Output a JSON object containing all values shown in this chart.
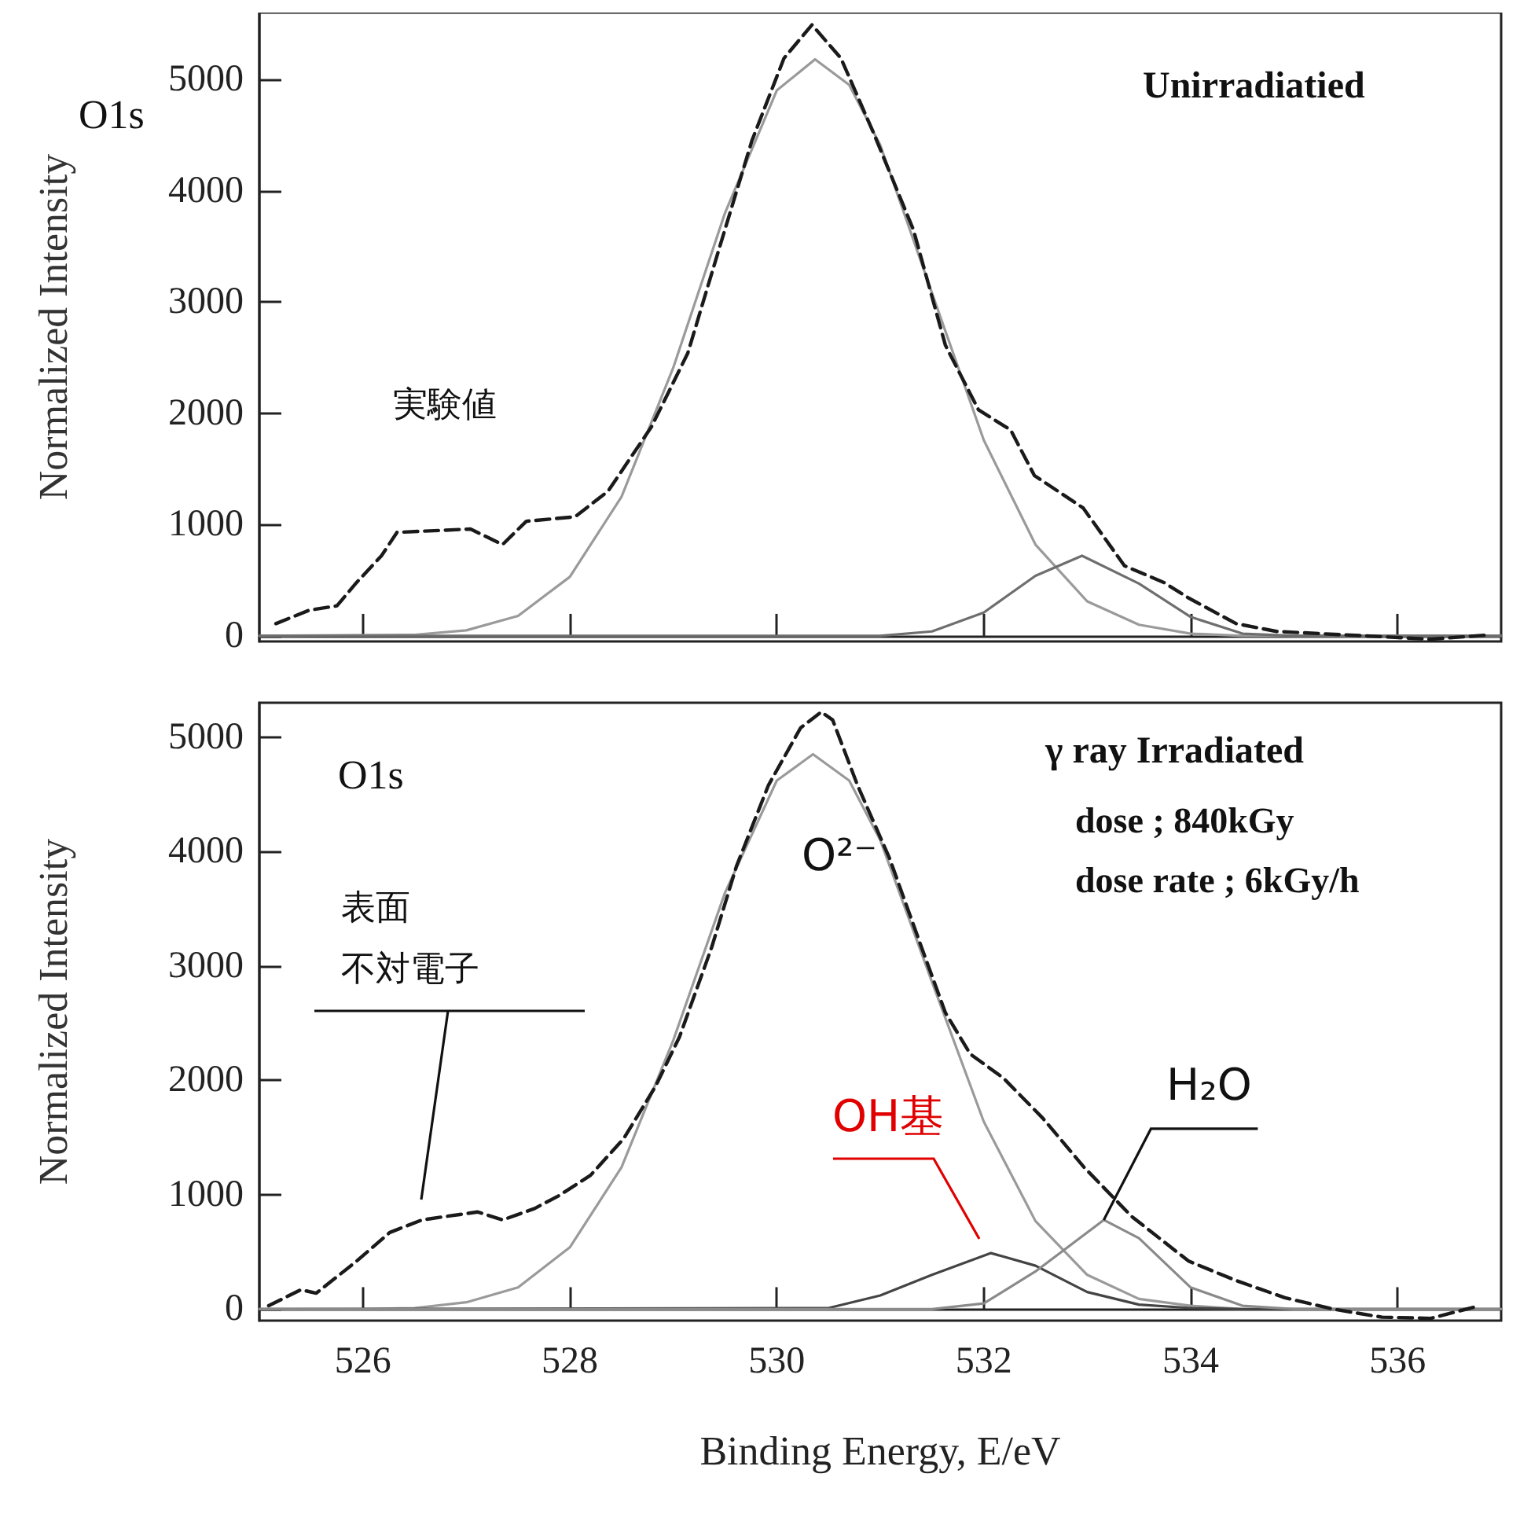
{
  "chart_data": [
    {
      "type": "line",
      "ylabel": "Normalized Intensity",
      "xlim": [
        525,
        537
      ],
      "xticks": [
        526,
        528,
        530,
        532,
        534,
        536
      ],
      "ylim": [
        -50,
        5600
      ],
      "yticks": [
        0,
        1000,
        2000,
        3000,
        4000,
        5000
      ],
      "tick_labels": "y",
      "marker": "none",
      "annotations": [
        "O1s",
        "Unirradiatied",
        "実験値"
      ],
      "series": [
        {
          "color": "#1a1a1a",
          "line_style": "dashed",
          "x": [
            525.16,
            525.48,
            525.75,
            525.94,
            526.18,
            526.33,
            527.04,
            527.35,
            527.58,
            528.05,
            528.37,
            528.79,
            529.14,
            529.45,
            529.76,
            530.07,
            530.34,
            530.62,
            530.93,
            531.32,
            531.63,
            531.95,
            532.26,
            532.49,
            532.96,
            533.36,
            533.74,
            533.98,
            534.44,
            534.83,
            535.69,
            536.32,
            536.9
          ],
          "values": [
            110,
            230,
            270,
            480,
            720,
            930,
            960,
            820,
            1030,
            1070,
            1300,
            1880,
            2540,
            3500,
            4450,
            5190,
            5490,
            5190,
            4530,
            3650,
            2610,
            2030,
            1850,
            1440,
            1150,
            630,
            480,
            340,
            110,
            40,
            0,
            -30,
            10
          ]
        },
        {
          "color": "#9a9a9a",
          "line_style": "solid",
          "x": [
            525,
            526.5,
            527,
            527.5,
            528,
            528.5,
            529,
            529.5,
            530,
            530.37,
            530.7,
            531,
            531.5,
            532,
            532.5,
            533,
            533.5,
            534,
            534.5,
            537
          ],
          "values": [
            0,
            10,
            50,
            180,
            530,
            1250,
            2410,
            3800,
            4900,
            5180,
            4950,
            4410,
            3080,
            1760,
            820,
            310,
            100,
            20,
            0,
            0
          ]
        },
        {
          "color": "#6e6e6e",
          "line_style": "solid",
          "x": [
            525,
            531,
            531.5,
            532,
            532.5,
            532.95,
            533.5,
            534,
            534.5,
            535,
            537
          ],
          "values": [
            0,
            0,
            40,
            210,
            540,
            720,
            470,
            170,
            20,
            0,
            0
          ]
        }
      ]
    },
    {
      "type": "line",
      "ylabel": "Normalized Intensity",
      "xlabel": "Binding Energy, E/eV",
      "xlim": [
        525,
        537
      ],
      "xticks": [
        526,
        528,
        530,
        532,
        534,
        536
      ],
      "ylim": [
        -100,
        5300
      ],
      "yticks": [
        0,
        1000,
        2000,
        3000,
        4000,
        5000
      ],
      "marker": "none",
      "annotations": [
        "O1s",
        "γ ray Irradiated",
        "dose ; 840kGy",
        "dose rate ; 6kGy/h",
        "O²⁻",
        "表面",
        "不対電子",
        "OH基",
        {
          "text": "H₂O",
          "x": 533.16,
          "y": 780
        }
      ],
      "series": [
        {
          "color": "#1a1a1a",
          "line_style": "dashed",
          "x": [
            525.09,
            525.4,
            525.55,
            525.94,
            526.26,
            526.57,
            526.8,
            527.11,
            527.35,
            527.66,
            527.89,
            528.2,
            528.52,
            528.83,
            529.06,
            529.37,
            529.61,
            529.92,
            530.23,
            530.43,
            530.54,
            530.78,
            531.09,
            531.4,
            531.63,
            531.87,
            532.19,
            532.57,
            532.97,
            533.43,
            533.98,
            534.44,
            534.91,
            535.38,
            535.85,
            536.32,
            536.79
          ],
          "values": [
            30,
            170,
            140,
            420,
            670,
            780,
            810,
            850,
            780,
            880,
            990,
            1170,
            1490,
            1950,
            2380,
            3160,
            3870,
            4580,
            5080,
            5220,
            5150,
            4580,
            3940,
            3160,
            2590,
            2230,
            2020,
            1670,
            1240,
            810,
            420,
            250,
            100,
            0,
            -70,
            -80,
            30
          ]
        },
        {
          "color": "#9a9a9a",
          "line_style": "solid",
          "x": [
            525,
            526,
            526.5,
            527,
            527.5,
            528,
            528.5,
            529,
            529.5,
            530,
            530.35,
            530.7,
            531,
            531.5,
            532,
            532.5,
            533,
            533.5,
            534,
            534.5,
            537
          ],
          "values": [
            0,
            0,
            10,
            60,
            190,
            540,
            1240,
            2350,
            3640,
            4620,
            4850,
            4620,
            4100,
            2860,
            1640,
            770,
            300,
            90,
            30,
            0,
            0
          ]
        },
        {
          "color": "#444444",
          "line_style": "solid",
          "x": [
            525,
            530.5,
            531,
            531.5,
            532.07,
            532.5,
            533,
            533.5,
            534,
            534.5,
            537
          ],
          "values": [
            0,
            10,
            120,
            300,
            490,
            380,
            150,
            40,
            10,
            0,
            0
          ]
        },
        {
          "color": "#8a8a8a",
          "line_style": "solid",
          "x": [
            525,
            531.5,
            532,
            532.5,
            533.16,
            533.5,
            534,
            534.5,
            535,
            537
          ],
          "values": [
            0,
            0,
            50,
            330,
            780,
            620,
            190,
            30,
            0,
            0
          ]
        }
      ]
    }
  ]
}
